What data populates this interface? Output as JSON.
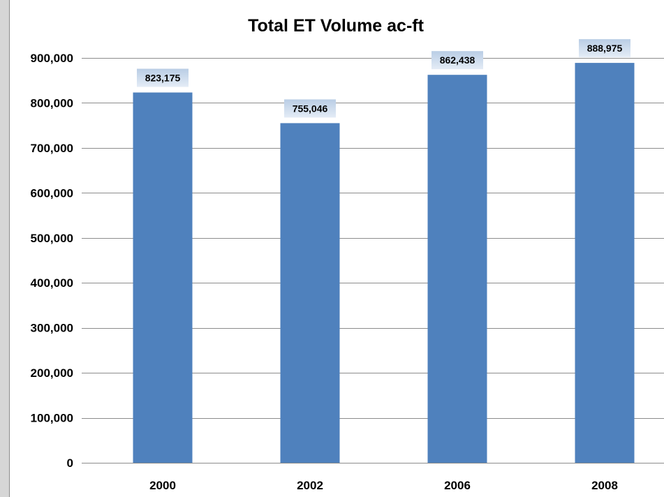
{
  "chart_data": {
    "type": "bar",
    "title": "Total ET Volume ac-ft",
    "xlabel": "",
    "ylabel": "",
    "categories": [
      "2000",
      "2002",
      "2006",
      "2008"
    ],
    "values": [
      823175,
      755046,
      862438,
      888975
    ],
    "value_labels": [
      "823,175",
      "755,046",
      "862,438",
      "888,975"
    ],
    "ylim": [
      0,
      900000
    ],
    "y_ticks": [
      0,
      100000,
      200000,
      300000,
      400000,
      500000,
      600000,
      700000,
      800000,
      900000
    ],
    "y_tick_labels": [
      "0",
      "100,000",
      "200,000",
      "300,000",
      "400,000",
      "500,000",
      "600,000",
      "700,000",
      "800,000",
      "900,000"
    ],
    "grid": true,
    "legend": "none",
    "colors": {
      "bar": "#4f81bd",
      "gridline": "#8c8c8c",
      "data_label_bg_top": "#b9cde5",
      "data_label_bg_bottom": "#e4ecf6",
      "frame_bg": "#d6d6d6"
    }
  }
}
